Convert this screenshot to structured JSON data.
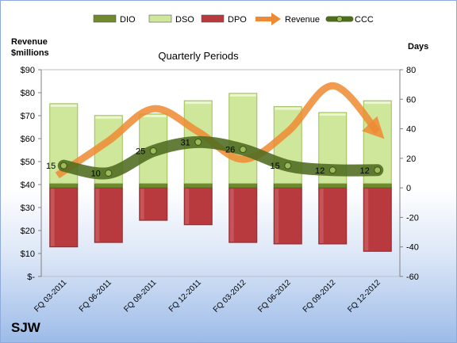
{
  "chart_data": {
    "type": "bar",
    "title": "Quarterly Periods",
    "company": "SJW",
    "y_left_label": [
      "Revenue",
      "$millions"
    ],
    "y_right_label": "Days",
    "categories": [
      "FQ 03-2011",
      "FQ 06-2011",
      "FQ 09-2011",
      "FQ 12-2011",
      "FQ 03-2012",
      "FQ 06-2012",
      "FQ 09-2012",
      "FQ 12-2012"
    ],
    "y_left": {
      "min": 0,
      "max": 90,
      "step": 10,
      "tick_labels": [
        "$-",
        "$10",
        "$20",
        "$30",
        "$40",
        "$50",
        "$60",
        "$70",
        "$80",
        "$90"
      ]
    },
    "y_right": {
      "min": -60,
      "max": 80,
      "step": 20,
      "tick_labels": [
        "-60",
        "-40",
        "-20",
        "0",
        "20",
        "40",
        "60",
        "80"
      ]
    },
    "legend": {
      "position": "top",
      "items": [
        {
          "name": "DIO",
          "kind": "bar",
          "color": "#6f8a2c"
        },
        {
          "name": "DSO",
          "kind": "bar",
          "color": "#cfe79b"
        },
        {
          "name": "DPO",
          "kind": "bar",
          "color": "#b8393e"
        },
        {
          "name": "Revenue",
          "kind": "arrow",
          "color": "#ee8a33"
        },
        {
          "name": "CCC",
          "kind": "line",
          "color": "#4f6b1f"
        }
      ]
    },
    "series": [
      {
        "name": "DIO",
        "axis": "right",
        "values": [
          3,
          3,
          3,
          3,
          3,
          3,
          3,
          3
        ]
      },
      {
        "name": "DSO",
        "axis": "right",
        "values": [
          54,
          46,
          47,
          56,
          61,
          52,
          48,
          56
        ]
      },
      {
        "name": "DPO",
        "axis": "right",
        "values": [
          -40,
          -37,
          -22,
          -25,
          -37,
          -38,
          -38,
          -43
        ]
      },
      {
        "name": "Revenue",
        "axis": "left",
        "values": [
          44,
          59,
          73,
          63,
          51,
          63,
          83,
          63
        ]
      },
      {
        "name": "CCC",
        "axis": "right",
        "values": [
          15,
          10,
          25,
          31,
          26,
          15,
          12,
          12
        ],
        "labels": [
          "15",
          "10",
          "25",
          "31",
          "26",
          "15",
          "12",
          "12"
        ]
      }
    ],
    "colors": {
      "dio": "#6f8a2c",
      "dso": "#cfe79b",
      "dpo": "#b8393e",
      "revenue": "#ee8a33",
      "ccc": "#4f6b1f",
      "ccc_marker": "#9bbb59"
    }
  }
}
